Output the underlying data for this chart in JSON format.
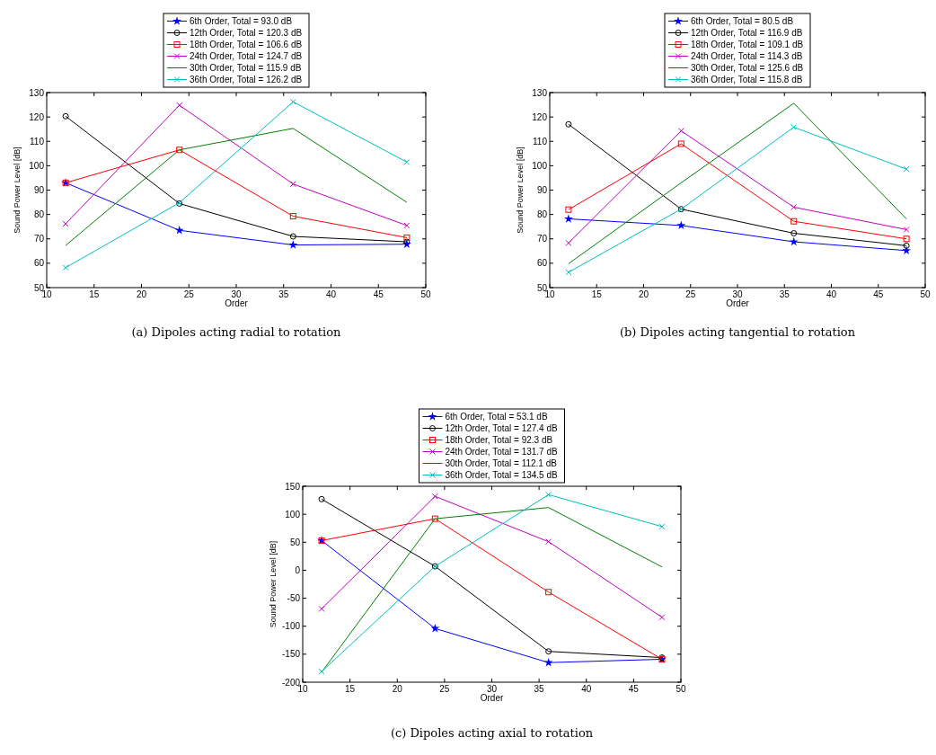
{
  "chart_data": [
    {
      "type": "line",
      "title": "(a)  Dipoles acting radial to rotation",
      "xlabel": "Order",
      "ylabel": "Sound Power Level [dB]",
      "x": [
        12,
        24,
        36,
        48
      ],
      "xlim": [
        10,
        50
      ],
      "xticks": [
        10,
        15,
        20,
        25,
        30,
        35,
        40,
        45,
        50
      ],
      "ylim": [
        50,
        130
      ],
      "yticks": [
        50,
        60,
        70,
        80,
        90,
        100,
        110,
        120,
        130
      ],
      "legend": "top",
      "grid": false,
      "series": [
        {
          "name": "6th Order, Total = 93.0 dB",
          "color": "#0000ff",
          "marker": "star",
          "values": [
            93,
            73.5,
            67.5,
            67.8
          ]
        },
        {
          "name": "12th Order, Total = 120.3 dB",
          "color": "#000000",
          "marker": "circle",
          "values": [
            120.3,
            84.5,
            71,
            68.8
          ]
        },
        {
          "name": "18th Order, Total = 106.6 dB",
          "color": "#ff0000",
          "marker": "square",
          "values": [
            93,
            106.5,
            79.3,
            70.5
          ]
        },
        {
          "name": "24th Order, Total = 124.7 dB",
          "color": "#bf00bf",
          "marker": "cross",
          "values": [
            76.2,
            124.8,
            92.5,
            75.5
          ]
        },
        {
          "name": "30th Order, Total = 115.9 dB",
          "color": "#008000",
          "marker": "none",
          "values": [
            67.3,
            106.5,
            115.3,
            85
          ]
        },
        {
          "name": "36th Order, Total = 126.2 dB",
          "color": "#00bfbf",
          "marker": "cross",
          "values": [
            58.2,
            84.8,
            126.2,
            101.5
          ]
        }
      ]
    },
    {
      "type": "line",
      "title": "(b)  Dipoles acting tangential to rotation",
      "xlabel": "Order",
      "ylabel": "Sound Power Level [dB]",
      "x": [
        12,
        24,
        36,
        48
      ],
      "xlim": [
        10,
        50
      ],
      "xticks": [
        10,
        15,
        20,
        25,
        30,
        35,
        40,
        45,
        50
      ],
      "ylim": [
        50,
        130
      ],
      "yticks": [
        50,
        60,
        70,
        80,
        90,
        100,
        110,
        120,
        130
      ],
      "legend": "top",
      "grid": false,
      "series": [
        {
          "name": "6th Order, Total = 80.5 dB",
          "color": "#0000ff",
          "marker": "star",
          "values": [
            78.2,
            75.5,
            68.8,
            65.2
          ]
        },
        {
          "name": "12th Order, Total = 116.9 dB",
          "color": "#000000",
          "marker": "circle",
          "values": [
            117,
            82.2,
            72.3,
            67.2
          ]
        },
        {
          "name": "18th Order, Total = 109.1 dB",
          "color": "#ff0000",
          "marker": "square",
          "values": [
            82,
            109,
            77.2,
            70
          ]
        },
        {
          "name": "24th Order, Total = 114.3 dB",
          "color": "#bf00bf",
          "marker": "cross",
          "values": [
            68.3,
            114.3,
            83,
            73.8
          ]
        },
        {
          "name": "30th Order, Total = 125.6 dB",
          "color": "#008000",
          "marker": "none",
          "values": [
            59.8,
            93,
            125.6,
            78.2
          ]
        },
        {
          "name": "36th Order, Total = 115.8 dB",
          "color": "#00bfbf",
          "marker": "cross",
          "values": [
            56.3,
            82.2,
            115.8,
            98.6
          ]
        }
      ]
    },
    {
      "type": "line",
      "title": "(c)  Dipoles acting axial to rotation",
      "xlabel": "Order",
      "ylabel": "Sound Power Level [dB]",
      "x": [
        12,
        24,
        36,
        48
      ],
      "xlim": [
        10,
        50
      ],
      "xticks": [
        10,
        15,
        20,
        25,
        30,
        35,
        40,
        45,
        50
      ],
      "ylim": [
        -200,
        150
      ],
      "yticks": [
        -200,
        -150,
        -100,
        -50,
        0,
        50,
        100,
        150
      ],
      "legend": "top",
      "grid": false,
      "series": [
        {
          "name": "6th Order, Total = 53.1 dB",
          "color": "#0000ff",
          "marker": "star",
          "values": [
            53,
            -104,
            -165,
            -159
          ]
        },
        {
          "name": "12th Order, Total = 127.4 dB",
          "color": "#000000",
          "marker": "circle",
          "values": [
            127,
            7,
            -145,
            -156
          ]
        },
        {
          "name": "18th Order, Total = 92.3 dB",
          "color": "#ff0000",
          "marker": "square",
          "values": [
            53,
            92,
            -39,
            -159
          ]
        },
        {
          "name": "24th Order, Total = 131.7 dB",
          "color": "#bf00bf",
          "marker": "cross",
          "values": [
            -69,
            132,
            51,
            -84
          ]
        },
        {
          "name": "30th Order, Total = 112.1 dB",
          "color": "#008000",
          "marker": "none",
          "values": [
            -182,
            92,
            112,
            6
          ]
        },
        {
          "name": "36th Order, Total = 134.5 dB",
          "color": "#00bfbf",
          "marker": "cross",
          "values": [
            -181,
            7,
            135,
            78
          ]
        }
      ]
    }
  ]
}
